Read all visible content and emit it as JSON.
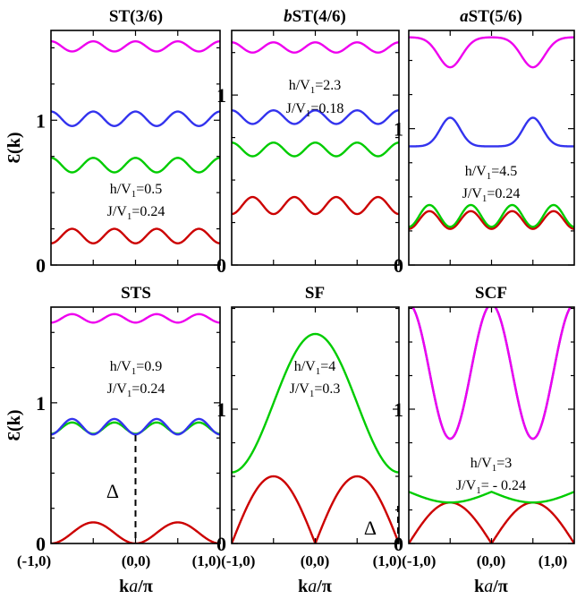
{
  "chart_data": [
    {
      "id": "p0",
      "type": "line",
      "title_prefix": "",
      "title": "ST(3/6)",
      "ylabel": "Ɛ(k)",
      "yticks": [
        0,
        1
      ],
      "xlim": [
        -1,
        1
      ],
      "ylim": [
        0,
        1.62
      ],
      "annotations": [
        {
          "lines": [
            [
              "h/V",
              "1",
              "=0.5"
            ],
            [
              "J/V",
              "1",
              "=0.24"
            ]
          ]
        }
      ],
      "series": [
        {
          "color": "#cc0000",
          "func": "cos",
          "mean": 0.2,
          "amp": -0.05,
          "k": 4
        },
        {
          "color": "#00cc00",
          "func": "cos",
          "mean": 0.69,
          "amp": 0.05,
          "k": 4
        },
        {
          "color": "#3333ee",
          "func": "cos",
          "mean": 1.01,
          "amp": 0.05,
          "k": 4
        },
        {
          "color": "#ee00ee",
          "func": "cos",
          "mean": 1.51,
          "amp": 0.035,
          "k": 4
        }
      ]
    },
    {
      "id": "p1",
      "type": "line",
      "title_prefix": "b",
      "title": "ST(4/6)",
      "yticks": [
        0,
        1
      ],
      "xlim": [
        -1,
        1
      ],
      "ylim": [
        0,
        1.38
      ],
      "annotations": [
        {
          "lines": [
            [
              "h/V",
              "1",
              "=2.3"
            ],
            [
              "J/V",
              "1",
              "=0.18"
            ]
          ]
        }
      ],
      "series": [
        {
          "color": "#cc0000",
          "func": "cos",
          "mean": 0.35,
          "amp": -0.05,
          "k": 4
        },
        {
          "color": "#00cc00",
          "func": "cos",
          "mean": 0.68,
          "amp": 0.04,
          "k": 4
        },
        {
          "color": "#3333ee",
          "func": "cos",
          "mean": 0.87,
          "amp": 0.04,
          "k": 4
        },
        {
          "color": "#ee00ee",
          "func": "cos",
          "mean": 1.28,
          "amp": 0.03,
          "k": 4
        }
      ]
    },
    {
      "id": "p2",
      "type": "line",
      "title_prefix": "a",
      "title": "ST(5/6)",
      "yticks": [
        0,
        1
      ],
      "xlim": [
        -1,
        1
      ],
      "ylim": [
        0,
        1.72
      ],
      "annotations": [
        {
          "lines": [
            [
              "h/V",
              "1",
              "=4.5"
            ],
            [
              "J/V",
              "1",
              "=0.24"
            ]
          ]
        }
      ],
      "series": [
        {
          "color": "#cc0000",
          "func": "cos",
          "mean": 0.33,
          "amp": -0.065,
          "k": 4
        },
        {
          "color": "#00cc00",
          "func": "cos",
          "mean": 0.36,
          "amp": -0.08,
          "k": 4
        },
        {
          "color": "#3333ee",
          "func": "bump",
          "base": 0.87,
          "peak": 1.08,
          "width": 0.5
        },
        {
          "color": "#ee00ee",
          "func": "dip",
          "base": 1.67,
          "peak": 1.45,
          "width": 0.5
        }
      ]
    },
    {
      "id": "p3",
      "type": "line",
      "title_prefix": "",
      "title": "STS",
      "ylabel": "Ɛ(k)",
      "yticks": [
        0,
        1
      ],
      "xlim": [
        -1,
        1
      ],
      "ylim": [
        0,
        1.68
      ],
      "annotations": [
        {
          "lines": [
            [
              "h/V",
              "1",
              "=0.9"
            ],
            [
              "J/V",
              "1",
              "=0.24"
            ]
          ]
        }
      ],
      "delta": "Δ",
      "series": [
        {
          "color": "#cc0000",
          "func": "abscos",
          "mean": 0.08,
          "amp": -0.08,
          "k": 4
        },
        {
          "color": "#00cc00",
          "func": "cos",
          "mean": 0.82,
          "amp": -0.04,
          "k": 4
        },
        {
          "color": "#3333ee",
          "func": "cos",
          "mean": 0.83,
          "amp": -0.055,
          "k": 4
        },
        {
          "color": "#ee00ee",
          "func": "cos",
          "mean": 1.6,
          "amp": -0.03,
          "k": 4
        }
      ]
    },
    {
      "id": "p4",
      "type": "line",
      "title_prefix": "",
      "title": "SF",
      "yticks": [
        0,
        1
      ],
      "xlim": [
        -1,
        1
      ],
      "ylim": [
        0,
        1.76
      ],
      "annotations": [
        {
          "lines": [
            [
              "h/V",
              "1",
              "=4"
            ],
            [
              "J/V",
              "1",
              "=0.3"
            ]
          ]
        }
      ],
      "delta": "Δ",
      "series": [
        {
          "color": "#cc0000",
          "func": "sf_red"
        },
        {
          "color": "#00cc00",
          "func": "sf_green"
        }
      ]
    },
    {
      "id": "p5",
      "type": "line",
      "title_prefix": "",
      "title": "SCF",
      "yticks": [
        0,
        1
      ],
      "xlim": [
        -1,
        1
      ],
      "ylim": [
        0,
        1.76
      ],
      "annotations": [
        {
          "lines": [
            [
              "h/V",
              "1",
              "=3"
            ],
            [
              "J/V",
              "1",
              "= - 0.24"
            ]
          ]
        }
      ],
      "series": [
        {
          "color": "#cc0000",
          "func": "scf_red"
        },
        {
          "color": "#00cc00",
          "func": "scf_green"
        },
        {
          "color": "#3333ee",
          "func": "scf_blue"
        },
        {
          "color": "#ee00ee",
          "func": "scf_magenta"
        }
      ]
    }
  ],
  "xticks": [
    "(-1,0)",
    "(0,0)",
    "(1,0)"
  ],
  "xlabel": "ka/π",
  "xlabel_k": "k",
  "xlabel_a": "a",
  "xlabel_rest": "/π"
}
